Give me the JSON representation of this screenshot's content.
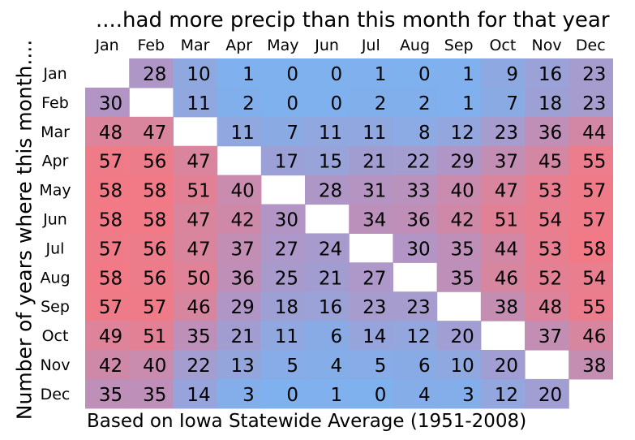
{
  "chart_data": {
    "type": "heatmap",
    "title": "....had more precip than this month for that year",
    "ylabel": "Number of years where this month....",
    "footer": "Based on Iowa Statewide Average (1951-2008)",
    "columns": [
      "Jan",
      "Feb",
      "Mar",
      "Apr",
      "May",
      "Jun",
      "Jul",
      "Aug",
      "Sep",
      "Oct",
      "Nov",
      "Dec"
    ],
    "rows": [
      "Jan",
      "Feb",
      "Mar",
      "Apr",
      "May",
      "Jun",
      "Jul",
      "Aug",
      "Sep",
      "Oct",
      "Nov",
      "Dec"
    ],
    "values": [
      [
        null,
        28,
        10,
        1,
        0,
        0,
        1,
        0,
        1,
        9,
        16,
        23
      ],
      [
        30,
        null,
        11,
        2,
        0,
        0,
        2,
        2,
        1,
        7,
        18,
        23
      ],
      [
        48,
        47,
        null,
        11,
        7,
        11,
        11,
        8,
        12,
        23,
        36,
        44
      ],
      [
        57,
        56,
        47,
        null,
        17,
        15,
        21,
        22,
        29,
        37,
        45,
        55
      ],
      [
        58,
        58,
        51,
        40,
        null,
        28,
        31,
        33,
        40,
        47,
        53,
        57
      ],
      [
        58,
        58,
        47,
        42,
        30,
        null,
        34,
        36,
        42,
        51,
        54,
        57
      ],
      [
        57,
        56,
        47,
        37,
        27,
        24,
        null,
        30,
        35,
        44,
        53,
        58
      ],
      [
        58,
        56,
        50,
        36,
        25,
        21,
        27,
        null,
        35,
        46,
        52,
        54
      ],
      [
        57,
        57,
        46,
        29,
        18,
        16,
        23,
        23,
        null,
        38,
        48,
        55
      ],
      [
        49,
        51,
        35,
        21,
        11,
        6,
        14,
        12,
        20,
        null,
        37,
        46
      ],
      [
        42,
        40,
        22,
        13,
        5,
        4,
        5,
        6,
        10,
        20,
        null,
        38
      ],
      [
        35,
        35,
        14,
        3,
        0,
        1,
        0,
        4,
        3,
        12,
        20,
        null
      ]
    ],
    "value_range": [
      0,
      58
    ],
    "color_low": "#7eb1ee",
    "color_mid": "#b096c6",
    "color_high": "#f27a86"
  }
}
